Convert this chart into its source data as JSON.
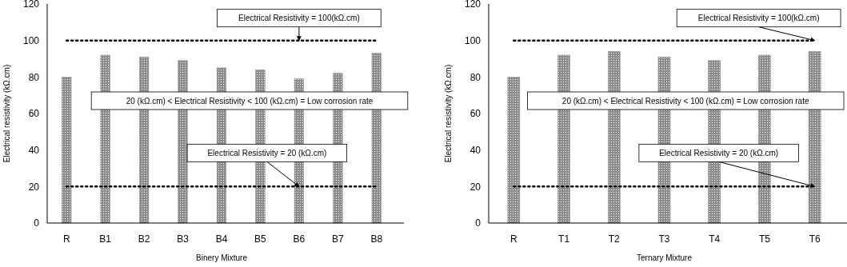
{
  "chart_data": [
    {
      "type": "bar",
      "xlabel": "Binery Mixture",
      "ylabel": "Electrical resistivity  (kΩ.cm)",
      "categories": [
        "R",
        "B1",
        "B2",
        "B3",
        "B4",
        "B5",
        "B6",
        "B7",
        "B8"
      ],
      "values": [
        80,
        92,
        91,
        89,
        85,
        84,
        79,
        82,
        93
      ],
      "color": "#8c8c8c",
      "ylim": [
        0,
        120
      ],
      "yticks": [
        0,
        20,
        40,
        60,
        80,
        100,
        120
      ],
      "grid": false,
      "ref_lines": [
        {
          "axis": "y",
          "value": 100,
          "color": "#000000",
          "line_style": "dotted"
        },
        {
          "axis": "y",
          "value": 20,
          "color": "#000000",
          "line_style": "dotted"
        }
      ],
      "annotations": [
        {
          "text": "Electrical  Resistivity = 100(kΩ.cm)",
          "x": "B6",
          "y": 100
        },
        "20 (kΩ.cm)  < Electrical  Resistivity < 100 (kΩ.cm) = Low corrosion rate",
        {
          "text": "Electrical Resistivity = 20 (kΩ.cm)",
          "x": "B6",
          "y": 20
        }
      ]
    },
    {
      "type": "bar",
      "xlabel": "Ternary Mixture",
      "ylabel": "Electrical resistivity  (kΩ.cm)",
      "categories": [
        "R",
        "T1",
        "T2",
        "T3",
        "T4",
        "T5",
        "T6"
      ],
      "values": [
        80,
        92,
        94,
        91,
        89,
        92,
        94
      ],
      "color": "#8c8c8c",
      "ylim": [
        0,
        120
      ],
      "yticks": [
        0,
        20,
        40,
        60,
        80,
        100,
        120
      ],
      "grid": false,
      "ref_lines": [
        {
          "axis": "y",
          "value": 100,
          "color": "#000000",
          "line_style": "dotted"
        },
        {
          "axis": "y",
          "value": 20,
          "color": "#000000",
          "line_style": "dotted"
        }
      ],
      "annotations": [
        {
          "text": "Electrical  Resistivity = 100(kΩ.cm)",
          "x": "T6",
          "y": 100
        },
        "20 (kΩ.cm)  < Electrical  Resistivity < 100 (kΩ.cm) = Low corrosion rate",
        {
          "text": "Electrical Resistivity = 20 (kΩ.cm)",
          "x": "T6",
          "y": 20
        }
      ]
    }
  ]
}
